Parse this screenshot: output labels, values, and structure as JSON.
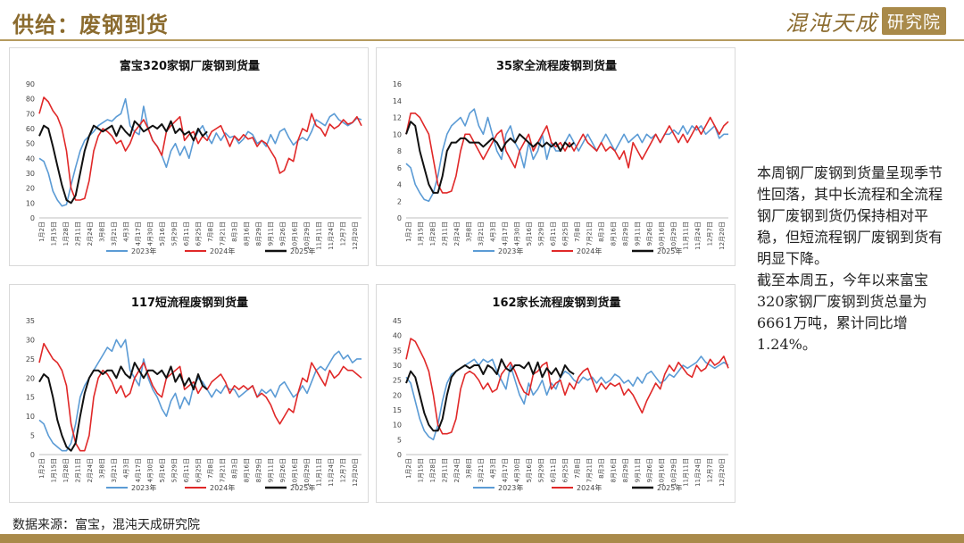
{
  "header": {
    "title": "供给：废钢到货"
  },
  "logo": {
    "script": "混沌天成",
    "box": "研究院"
  },
  "colors": {
    "y2023": "#5b9bd5",
    "y2024": "#e02828",
    "y2025": "#111111",
    "accent": "#a98a4a"
  },
  "x_tick_labels": [
    "1月2日",
    "1月15日",
    "1月28日",
    "2月11日",
    "2月24日",
    "3月8日",
    "3月21日",
    "4月3日",
    "4月17日",
    "4月30日",
    "5月16日",
    "5月29日",
    "6月11日",
    "6月25日",
    "7月8日",
    "7月21日",
    "8月3日",
    "8月16日",
    "8月29日",
    "9月11日",
    "9月26日",
    "10月16日",
    "10月29日",
    "11月11日",
    "11月24日",
    "12月7日",
    "12月20日"
  ],
  "side_text": {
    "para1": "本周钢厂废钢到货量呈现季节性回落，其中长流程和全流程钢厂废钢到货仍保持相对平稳，但短流程钢厂废钢到货有明显下降。",
    "para2": "截至本周五，今年以来富宝320家钢厂废钢到货总量为6661万吨，累计同比增1.24%。"
  },
  "source": "数据来源：富宝，混沌天成研究院",
  "chart_data": [
    {
      "type": "line",
      "title": "富宝320家钢厂废钢到货量",
      "ylim": [
        0,
        90
      ],
      "yticks": [
        0,
        10,
        20,
        30,
        40,
        50,
        60,
        70,
        80,
        90
      ],
      "x_count": 72,
      "series": [
        {
          "name": "2023年",
          "values": [
            40,
            38,
            30,
            18,
            12,
            8,
            9,
            22,
            34,
            45,
            52,
            55,
            58,
            62,
            64,
            66,
            65,
            68,
            70,
            80,
            62,
            58,
            56,
            75,
            60,
            52,
            48,
            42,
            34,
            45,
            50,
            42,
            48,
            40,
            52,
            58,
            62,
            55,
            50,
            57,
            52,
            57,
            54,
            55,
            50,
            53,
            58,
            56,
            50,
            52,
            48,
            56,
            50,
            58,
            60,
            54,
            49,
            52,
            54,
            52,
            58,
            66,
            64,
            62,
            68,
            70,
            66,
            64,
            62,
            64,
            67,
            66
          ]
        },
        {
          "name": "2024年",
          "values": [
            70,
            81,
            78,
            72,
            68,
            60,
            45,
            20,
            12,
            12,
            13,
            25,
            45,
            55,
            60,
            58,
            55,
            50,
            52,
            45,
            50,
            58,
            62,
            66,
            60,
            52,
            48,
            42,
            58,
            62,
            65,
            68,
            52,
            56,
            58,
            50,
            55,
            52,
            58,
            60,
            62,
            55,
            48,
            55,
            52,
            56,
            53,
            54,
            48,
            52,
            50,
            45,
            40,
            30,
            32,
            40,
            38,
            52,
            60,
            58,
            70,
            62,
            60,
            55,
            63,
            60,
            62,
            66,
            63,
            64,
            68,
            62
          ]
        },
        {
          "name": "2025年",
          "values": [
            55,
            62,
            60,
            48,
            35,
            22,
            12,
            10,
            15,
            30,
            45,
            55,
            62,
            60,
            58,
            60,
            62,
            55,
            62,
            58,
            55,
            65,
            62,
            58,
            60,
            62,
            60,
            63,
            58,
            65,
            57,
            60,
            56,
            58,
            52,
            60,
            55,
            58
          ]
        }
      ],
      "legend_position": "bottom"
    },
    {
      "type": "line",
      "title": "35家全流程废钢到货量",
      "ylim": [
        0,
        16
      ],
      "yticks": [
        0,
        2,
        4,
        6,
        8,
        10,
        12,
        14,
        16
      ],
      "x_count": 72,
      "series": [
        {
          "name": "2023年",
          "values": [
            6.5,
            6,
            4,
            3,
            2.2,
            2,
            3,
            5,
            8,
            10,
            11,
            11.5,
            12,
            11,
            12.5,
            13,
            11,
            10,
            12,
            10,
            8,
            7,
            10,
            11,
            9,
            8,
            6,
            9,
            7,
            8,
            10,
            7,
            9,
            8,
            8,
            9,
            10,
            9,
            8,
            9,
            10,
            9,
            8,
            9,
            10,
            9,
            8,
            9,
            10,
            9,
            9.5,
            10,
            9,
            10,
            9.5,
            10,
            9,
            10,
            10,
            10.5,
            10,
            11,
            10,
            11,
            10.5,
            11,
            10,
            10.5,
            11,
            9.5,
            10,
            10
          ]
        },
        {
          "name": "2024年",
          "values": [
            10,
            12.5,
            12.5,
            12,
            11,
            10,
            7,
            4,
            3,
            3,
            3.2,
            5,
            8,
            10,
            10,
            9,
            8,
            7,
            8,
            9,
            10,
            10.5,
            8,
            7,
            6,
            8,
            9,
            10,
            8,
            9,
            10,
            11,
            9,
            8.5,
            9,
            8,
            9,
            8,
            9,
            10,
            9,
            8.5,
            8,
            9,
            8,
            8.5,
            8,
            7,
            8,
            6,
            9,
            8,
            7,
            8,
            9,
            10,
            9,
            10,
            11,
            10,
            9,
            10,
            9,
            10,
            11,
            10,
            11,
            12,
            11,
            10,
            11,
            11.5
          ]
        },
        {
          "name": "2025年",
          "values": [
            10,
            11.5,
            11,
            8,
            6,
            4,
            3,
            3,
            5,
            8,
            9,
            9,
            9.5,
            9.5,
            9,
            9,
            9,
            8.5,
            9,
            9.5,
            9,
            8,
            9,
            9.5,
            9,
            10,
            9.5,
            9,
            8.5,
            9,
            8.5,
            9,
            8.5,
            9,
            8,
            9,
            8.5,
            9
          ]
        }
      ],
      "legend_position": "bottom"
    },
    {
      "type": "line",
      "title": "117短流程废钢到货量",
      "ylim": [
        0,
        35
      ],
      "yticks": [
        0,
        5,
        10,
        15,
        20,
        25,
        30,
        35
      ],
      "x_count": 72,
      "series": [
        {
          "name": "2023年",
          "values": [
            9,
            8,
            5,
            3,
            2,
            1,
            1,
            3,
            8,
            15,
            18,
            20,
            22,
            24,
            26,
            28,
            27,
            30,
            28,
            30,
            22,
            20,
            18,
            25,
            20,
            17,
            15,
            12,
            10,
            14,
            16,
            12,
            15,
            13,
            18,
            20,
            19,
            17,
            15,
            17,
            16,
            18,
            17,
            17,
            15,
            16,
            17,
            18,
            15,
            17,
            16,
            17,
            15,
            18,
            19,
            17,
            15,
            16,
            18,
            16,
            19,
            22,
            23,
            22,
            24,
            26,
            27,
            25,
            26,
            24,
            25,
            25
          ]
        },
        {
          "name": "2024年",
          "values": [
            24,
            29,
            27,
            25,
            24,
            22,
            18,
            8,
            3,
            1,
            1,
            5,
            15,
            20,
            22,
            21,
            19,
            16,
            18,
            15,
            16,
            20,
            22,
            24,
            21,
            18,
            16,
            15,
            20,
            21,
            22,
            23,
            17,
            18,
            19,
            16,
            18,
            17,
            19,
            20,
            21,
            19,
            16,
            18,
            17,
            18,
            17,
            18,
            15,
            16,
            15,
            13,
            10,
            8,
            10,
            12,
            11,
            16,
            20,
            19,
            24,
            22,
            20,
            18,
            22,
            20,
            21,
            23,
            22,
            22,
            21,
            20
          ]
        },
        {
          "name": "2025年",
          "values": [
            19,
            21,
            20,
            15,
            9,
            5,
            2,
            1,
            3,
            10,
            16,
            20,
            22,
            22,
            21,
            22,
            22,
            20,
            23,
            21,
            20,
            24,
            22,
            20,
            22,
            22,
            21,
            22,
            20,
            23,
            19,
            21,
            18,
            20,
            17,
            21,
            18,
            17
          ]
        }
      ],
      "legend_position": "bottom"
    },
    {
      "type": "line",
      "title": "162家长流程废钢到货量",
      "ylim": [
        0,
        45
      ],
      "yticks": [
        0,
        5,
        10,
        15,
        20,
        25,
        30,
        35,
        40,
        45
      ],
      "x_count": 72,
      "series": [
        {
          "name": "2023年",
          "values": [
            26,
            24,
            18,
            12,
            8,
            6,
            5,
            10,
            18,
            24,
            27,
            28,
            29,
            30,
            31,
            32,
            30,
            32,
            31,
            32,
            28,
            25,
            22,
            30,
            25,
            20,
            17,
            24,
            20,
            22,
            25,
            20,
            24,
            22,
            26,
            28,
            27,
            25,
            24,
            26,
            25,
            26,
            24,
            26,
            24,
            25,
            27,
            26,
            24,
            25,
            23,
            26,
            24,
            27,
            28,
            26,
            24,
            25,
            27,
            26,
            28,
            30,
            29,
            30,
            31,
            33,
            31,
            30,
            29,
            30,
            31,
            30
          ]
        },
        {
          "name": "2024年",
          "values": [
            32,
            39,
            38,
            35,
            32,
            28,
            20,
            10,
            7,
            7,
            7.5,
            12,
            22,
            27,
            28,
            27,
            25,
            22,
            24,
            21,
            22,
            27,
            29,
            31,
            28,
            24,
            21,
            20,
            27,
            28,
            30,
            31,
            22,
            24,
            25,
            20,
            24,
            22,
            26,
            28,
            29,
            25,
            21,
            24,
            22,
            24,
            23,
            24,
            20,
            22,
            20,
            17,
            14,
            18,
            21,
            24,
            22,
            27,
            30,
            28,
            31,
            29,
            27,
            26,
            30,
            28,
            29,
            32,
            30,
            31,
            33,
            29
          ]
        },
        {
          "name": "2025年",
          "values": [
            24,
            28,
            26,
            20,
            14,
            10,
            8,
            8,
            12,
            20,
            26,
            28,
            29,
            30,
            29,
            30,
            30,
            27,
            30,
            29,
            27,
            32,
            29,
            28,
            30,
            30,
            29,
            31,
            27,
            31,
            26,
            29,
            27,
            29,
            26,
            30,
            28,
            27
          ]
        }
      ],
      "legend_position": "bottom"
    }
  ]
}
